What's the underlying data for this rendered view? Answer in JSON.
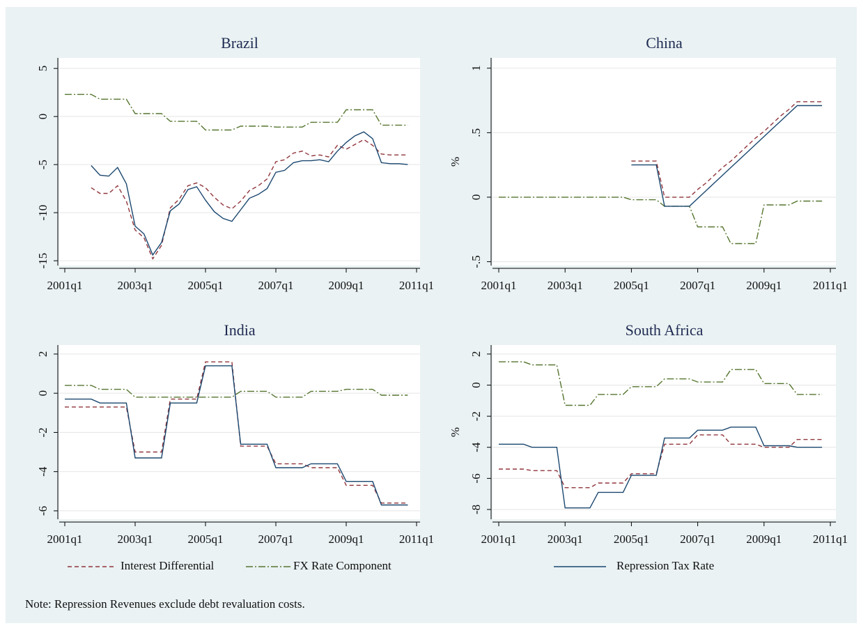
{
  "legend": [
    "Interest Differential",
    "FX Rate Component",
    "Repression Tax Rate"
  ],
  "colors": [
    "#90353b",
    "#55752f",
    "#1a476f"
  ],
  "note": "Note: Repression Revenues exclude debt revaluation costs.",
  "chart_data": [
    {
      "type": "line",
      "title": "Brazil",
      "categories": [
        "2001q1",
        null,
        null,
        null,
        null,
        null,
        null,
        null,
        "2003q1",
        null,
        null,
        null,
        null,
        null,
        null,
        null,
        "2005q1",
        null,
        null,
        null,
        null,
        null,
        null,
        null,
        "2007q1",
        null,
        null,
        null,
        null,
        null,
        null,
        null,
        "2009q1",
        null,
        null,
        null,
        null,
        null,
        null,
        null,
        "2011q1"
      ],
      "ylim": [
        -15.5,
        6.1
      ],
      "yticks": [
        -15,
        -10,
        -5,
        0,
        5
      ],
      "grid": true,
      "series": [
        {
          "values": [
            null,
            null,
            null,
            -7.4,
            -8.0,
            -8.0,
            -7.2,
            -8.8,
            -11.8,
            -12.6,
            -14.8,
            -13.4,
            -9.5,
            -8.6,
            -7.2,
            -6.9,
            -7.4,
            -8.4,
            -9.2,
            -9.6,
            -8.8,
            -7.7,
            -7.2,
            -6.5,
            -4.7,
            -4.5,
            -3.8,
            -3.6,
            -4.1,
            -4.0,
            -4.2,
            -3.0,
            -3.4,
            -2.9,
            -2.4,
            -3.0,
            -3.9,
            -4.0,
            -4.0,
            -4.0,
            null
          ]
        },
        {
          "values": [
            2.3,
            2.3,
            2.3,
            2.3,
            1.8,
            1.8,
            1.8,
            1.8,
            0.3,
            0.3,
            0.3,
            0.3,
            -0.5,
            -0.5,
            -0.5,
            -0.5,
            -1.4,
            -1.4,
            -1.4,
            -1.4,
            -1.0,
            -1.0,
            -1.0,
            -1.0,
            -1.1,
            -1.1,
            -1.1,
            -1.1,
            -0.6,
            -0.6,
            -0.6,
            -0.6,
            0.7,
            0.7,
            0.7,
            0.7,
            -0.9,
            -0.9,
            -0.9,
            -0.9,
            null
          ]
        },
        {
          "values": [
            null,
            null,
            null,
            -5.1,
            -6.1,
            -6.2,
            -5.3,
            -7.0,
            -11.4,
            -12.2,
            -14.4,
            -13.1,
            -9.8,
            -9.1,
            -7.6,
            -7.3,
            -8.7,
            -9.9,
            -10.6,
            -10.9,
            -9.7,
            -8.5,
            -8.1,
            -7.5,
            -5.8,
            -5.6,
            -4.8,
            -4.6,
            -4.6,
            -4.5,
            -4.7,
            -3.6,
            -2.7,
            -2.0,
            -1.6,
            -2.3,
            -4.8,
            -4.9,
            -4.9,
            -5.0,
            null
          ]
        }
      ]
    },
    {
      "type": "line",
      "title": "China",
      "y_label": "%",
      "categories": [
        "2001q1",
        null,
        null,
        null,
        null,
        null,
        null,
        null,
        "2003q1",
        null,
        null,
        null,
        null,
        null,
        null,
        null,
        "2005q1",
        null,
        null,
        null,
        null,
        null,
        null,
        null,
        "2007q1",
        null,
        null,
        null,
        null,
        null,
        null,
        null,
        "2009q1",
        null,
        null,
        null,
        null,
        null,
        null,
        null,
        "2011q1"
      ],
      "ylim": [
        -0.53,
        1.08
      ],
      "yticks": [
        {
          "value": -0.5,
          "label": "-.5"
        },
        0,
        {
          "value": 0.5,
          "label": ".5"
        },
        1
      ],
      "grid": true,
      "series": [
        {
          "values": [
            null,
            null,
            null,
            null,
            null,
            null,
            null,
            null,
            null,
            null,
            null,
            null,
            null,
            null,
            null,
            null,
            0.28,
            0.28,
            0.28,
            0.28,
            0.0,
            0.0,
            0.0,
            0.0,
            0.06,
            0.11,
            0.17,
            0.23,
            0.28,
            0.34,
            0.4,
            0.46,
            0.51,
            0.57,
            0.63,
            0.68,
            0.74,
            0.74,
            0.74,
            0.74,
            null
          ]
        },
        {
          "values": [
            0,
            0,
            0,
            0,
            0,
            0,
            0,
            0,
            0,
            0,
            0,
            0,
            0,
            0,
            0,
            0,
            -0.02,
            -0.02,
            -0.02,
            -0.02,
            -0.07,
            -0.07,
            -0.07,
            -0.07,
            -0.23,
            -0.23,
            -0.23,
            -0.23,
            -0.36,
            -0.36,
            -0.36,
            -0.36,
            -0.06,
            -0.06,
            -0.06,
            -0.06,
            -0.03,
            -0.03,
            -0.03,
            -0.03,
            null
          ]
        },
        {
          "values": [
            null,
            null,
            null,
            null,
            null,
            null,
            null,
            null,
            null,
            null,
            null,
            null,
            null,
            null,
            null,
            null,
            0.25,
            0.25,
            0.25,
            0.25,
            -0.07,
            -0.07,
            -0.07,
            -0.07,
            -0.01,
            0.05,
            0.11,
            0.17,
            0.23,
            0.29,
            0.35,
            0.41,
            0.47,
            0.53,
            0.59,
            0.65,
            0.71,
            0.71,
            0.71,
            0.71,
            null
          ]
        }
      ]
    },
    {
      "type": "line",
      "title": "India",
      "categories": [
        "2001q1",
        null,
        null,
        null,
        null,
        null,
        null,
        null,
        "2003q1",
        null,
        null,
        null,
        null,
        null,
        null,
        null,
        "2005q1",
        null,
        null,
        null,
        null,
        null,
        null,
        null,
        "2007q1",
        null,
        null,
        null,
        null,
        null,
        null,
        null,
        "2009q1",
        null,
        null,
        null,
        null,
        null,
        null,
        null,
        "2011q1"
      ],
      "ylim": [
        -6.43,
        2.46
      ],
      "yticks": [
        -6,
        -4,
        -2,
        0,
        2
      ],
      "grid": true,
      "series": [
        {
          "values": [
            -0.7,
            -0.7,
            -0.7,
            -0.7,
            -0.7,
            -0.7,
            -0.7,
            -0.7,
            -3.0,
            -3.0,
            -3.0,
            -3.0,
            -0.3,
            -0.3,
            -0.3,
            -0.3,
            1.6,
            1.6,
            1.6,
            1.6,
            -2.7,
            -2.7,
            -2.7,
            -2.7,
            -3.6,
            -3.6,
            -3.6,
            -3.6,
            -3.8,
            -3.8,
            -3.8,
            -3.8,
            -4.7,
            -4.7,
            -4.7,
            -4.7,
            -5.6,
            -5.6,
            -5.6,
            -5.6,
            null
          ]
        },
        {
          "values": [
            0.4,
            0.4,
            0.4,
            0.4,
            0.2,
            0.2,
            0.2,
            0.2,
            -0.2,
            -0.2,
            -0.2,
            -0.2,
            -0.2,
            -0.2,
            -0.2,
            -0.2,
            -0.2,
            -0.2,
            -0.2,
            -0.2,
            0.1,
            0.1,
            0.1,
            0.1,
            -0.2,
            -0.2,
            -0.2,
            -0.2,
            0.1,
            0.1,
            0.1,
            0.1,
            0.2,
            0.2,
            0.2,
            0.2,
            -0.1,
            -0.1,
            -0.1,
            -0.1,
            null
          ]
        },
        {
          "values": [
            -0.3,
            -0.3,
            -0.3,
            -0.3,
            -0.5,
            -0.5,
            -0.5,
            -0.5,
            -3.3,
            -3.3,
            -3.3,
            -3.3,
            -0.5,
            -0.5,
            -0.5,
            -0.5,
            1.4,
            1.4,
            1.4,
            1.4,
            -2.6,
            -2.6,
            -2.6,
            -2.6,
            -3.8,
            -3.8,
            -3.8,
            -3.8,
            -3.6,
            -3.6,
            -3.6,
            -3.6,
            -4.5,
            -4.5,
            -4.5,
            -4.5,
            -5.7,
            -5.7,
            -5.7,
            -5.7,
            null
          ]
        }
      ]
    },
    {
      "type": "line",
      "title": "South Africa",
      "y_label": "%",
      "categories": [
        "2001q1",
        null,
        null,
        null,
        null,
        null,
        null,
        null,
        "2003q1",
        null,
        null,
        null,
        null,
        null,
        null,
        null,
        "2005q1",
        null,
        null,
        null,
        null,
        null,
        null,
        null,
        "2007q1",
        null,
        null,
        null,
        null,
        null,
        null,
        null,
        "2009q1",
        null,
        null,
        null,
        null,
        null,
        null,
        null,
        "2011q1"
      ],
      "ylim": [
        -8.63,
        2.58
      ],
      "yticks": [
        -8,
        -6,
        -4,
        -2,
        0,
        2
      ],
      "grid": true,
      "series": [
        {
          "values": [
            -5.4,
            -5.4,
            -5.4,
            -5.4,
            -5.5,
            -5.5,
            -5.5,
            -5.5,
            -6.6,
            -6.6,
            -6.6,
            -6.6,
            -6.3,
            -6.3,
            -6.3,
            -6.3,
            -5.7,
            -5.7,
            -5.7,
            -5.7,
            -3.8,
            -3.8,
            -3.8,
            -3.8,
            -3.2,
            -3.2,
            -3.2,
            -3.2,
            -3.8,
            -3.8,
            -3.8,
            -3.8,
            -4.0,
            -4.0,
            -4.0,
            -4.0,
            -3.5,
            -3.5,
            -3.5,
            -3.5,
            null
          ]
        },
        {
          "values": [
            1.5,
            1.5,
            1.5,
            1.5,
            1.3,
            1.3,
            1.3,
            1.3,
            -1.3,
            -1.3,
            -1.3,
            -1.3,
            -0.6,
            -0.6,
            -0.6,
            -0.6,
            -0.1,
            -0.1,
            -0.1,
            -0.1,
            0.4,
            0.4,
            0.4,
            0.4,
            0.2,
            0.2,
            0.2,
            0.2,
            1.0,
            1.0,
            1.0,
            1.0,
            0.1,
            0.1,
            0.1,
            0.1,
            -0.6,
            -0.6,
            -0.6,
            -0.6,
            null
          ]
        },
        {
          "values": [
            -3.8,
            -3.8,
            -3.8,
            -3.8,
            -4.0,
            -4.0,
            -4.0,
            -4.0,
            -7.9,
            -7.9,
            -7.9,
            -7.9,
            -6.9,
            -6.9,
            -6.9,
            -6.9,
            -5.8,
            -5.8,
            -5.8,
            -5.8,
            -3.4,
            -3.4,
            -3.4,
            -3.4,
            -2.9,
            -2.9,
            -2.9,
            -2.9,
            -2.7,
            -2.7,
            -2.7,
            -2.7,
            -3.9,
            -3.9,
            -3.9,
            -3.9,
            -4.0,
            -4.0,
            -4.0,
            -4.0,
            null
          ]
        }
      ]
    }
  ]
}
